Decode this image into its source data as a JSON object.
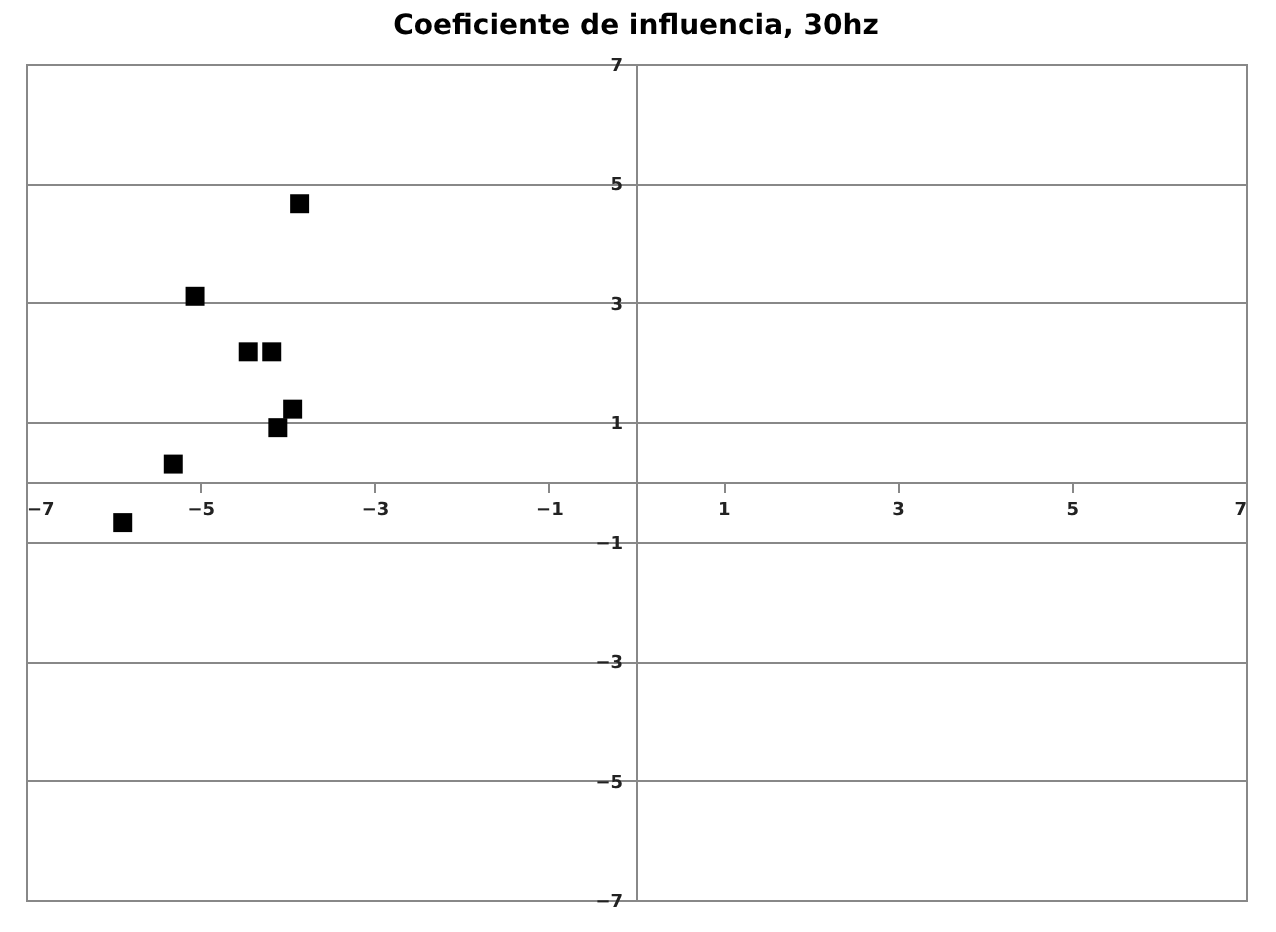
{
  "chart_data": {
    "type": "scatter",
    "title": "Coeficiente de influencia, 30hz",
    "x": [
      -5.89,
      -5.31,
      -5.06,
      -4.45,
      -4.18,
      -4.11,
      -3.94,
      -3.86
    ],
    "series": [
      {
        "color": "#000000",
        "values": [
          -0.68,
          0.3,
          3.11,
          2.18,
          2.18,
          0.91,
          1.22,
          4.66
        ]
      }
    ],
    "xlim": [
      -7,
      7
    ],
    "xticks": [
      -7,
      -5,
      -3,
      -1,
      1,
      3,
      5,
      7
    ],
    "ylim": [
      -7,
      7
    ],
    "yticks": [
      -7,
      -5,
      -3,
      -1,
      1,
      3,
      5,
      7
    ],
    "grid": "y",
    "marker": "square"
  }
}
